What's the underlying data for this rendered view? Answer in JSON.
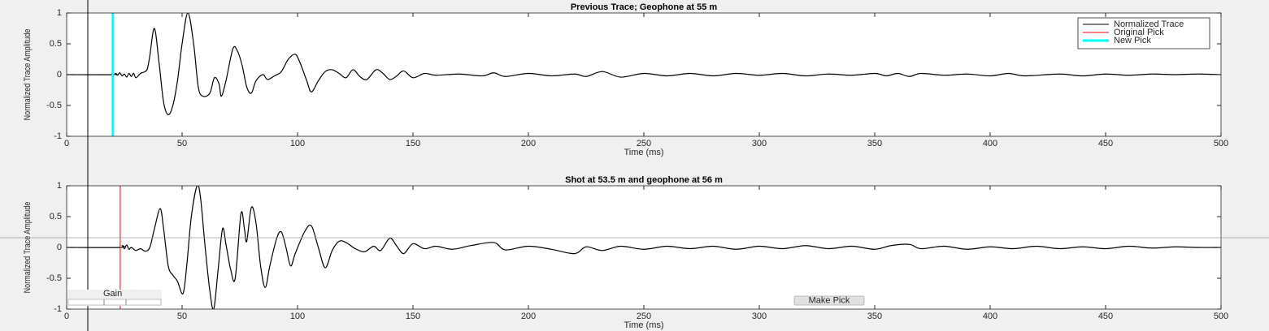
{
  "chart_data": [
    {
      "type": "line",
      "title": "Previous Trace; Geophone at 55 m",
      "xlabel": "Time (ms)",
      "ylabel": "Normalized Trace Amplitude",
      "xlim": [
        0,
        500
      ],
      "ylim": [
        -1,
        1
      ],
      "xticks": [
        0,
        50,
        100,
        150,
        200,
        250,
        300,
        350,
        400,
        450,
        500
      ],
      "yticks": [
        -1,
        -0.5,
        0,
        0.5,
        1
      ],
      "legend": "upper right",
      "series": [
        {
          "name": "Normalized Trace",
          "color": "#000000",
          "x": [
            0,
            20,
            21,
            22,
            23,
            24,
            25,
            26,
            27,
            28,
            29,
            30,
            32,
            34,
            35,
            36,
            38,
            40,
            42,
            44,
            46,
            48,
            50,
            52.5,
            55,
            57,
            59,
            62,
            64,
            66,
            67,
            69,
            72,
            74,
            76,
            78,
            80,
            82,
            85,
            87,
            90,
            93,
            96,
            99,
            101,
            104,
            106,
            109,
            112,
            115,
            118,
            121,
            124,
            127,
            130,
            134,
            137,
            140,
            143,
            146,
            150,
            155,
            160,
            170,
            180,
            185,
            190,
            200,
            210,
            220,
            225,
            232,
            240,
            250,
            260,
            270,
            280,
            290,
            300,
            310,
            320,
            330,
            340,
            350,
            355,
            360,
            365,
            370,
            380,
            390,
            400,
            408,
            415,
            430,
            440,
            450,
            460,
            470,
            480,
            490,
            500
          ],
          "values": [
            0,
            0,
            0.02,
            -0.01,
            0.03,
            -0.02,
            0.01,
            -0.04,
            0.02,
            -0.03,
            0.02,
            -0.05,
            0.02,
            0.05,
            0.1,
            0.3,
            0.75,
            0.2,
            -0.45,
            -0.65,
            -0.5,
            -0.1,
            0.5,
            1,
            0.5,
            -0.2,
            -0.35,
            -0.3,
            -0.05,
            -0.15,
            -0.35,
            -0.1,
            0.42,
            0.38,
            0.15,
            -0.2,
            -0.3,
            -0.1,
            0,
            -0.08,
            -0.02,
            0.05,
            0.25,
            0.33,
            0.2,
            -0.1,
            -0.28,
            -0.1,
            0.05,
            0.08,
            0.02,
            -0.05,
            0.08,
            -0.03,
            -0.08,
            0.08,
            0.02,
            -0.08,
            -0.02,
            0.06,
            -0.05,
            0.02,
            -0.01,
            0.01,
            -0.02,
            0.03,
            -0.03,
            0.02,
            -0.02,
            0.01,
            -0.03,
            0.05,
            -0.04,
            0.02,
            -0.02,
            0.02,
            -0.02,
            0.02,
            -0.01,
            0.02,
            -0.02,
            0.01,
            -0.01,
            0.02,
            -0.02,
            0.02,
            -0.03,
            0.02,
            -0.01,
            0.01,
            -0.02,
            0.02,
            -0.02,
            0.01,
            -0.02,
            0.01,
            -0.01,
            0.01,
            0,
            0.01,
            0
          ]
        }
      ],
      "picks": [
        {
          "name": "Original Pick",
          "color": "#ff0000",
          "x": 20
        },
        {
          "name": "New Pick",
          "color": "#00ffff",
          "x": 20
        }
      ]
    },
    {
      "type": "line",
      "title": "Shot at 53.5 m and geophone at 56 m",
      "xlabel": "Time (ms)",
      "ylabel": "Normalized Trace Amplitude",
      "xlim": [
        0,
        500
      ],
      "ylim": [
        -1,
        1
      ],
      "xticks": [
        0,
        50,
        100,
        150,
        200,
        250,
        300,
        350,
        400,
        450,
        500
      ],
      "yticks": [
        -1,
        -0.5,
        0,
        0.5,
        1
      ],
      "series": [
        {
          "color": "#000000",
          "x": [
            0,
            23,
            24,
            25,
            26,
            27,
            28,
            30,
            32,
            34,
            36,
            38,
            40.5,
            42,
            44,
            46,
            48,
            50.4,
            52,
            54,
            56.5,
            58,
            60,
            62,
            63.7,
            65.5,
            67.5,
            69,
            71,
            73,
            75.5,
            77,
            78,
            80,
            82,
            84,
            86,
            88,
            91,
            93,
            95,
            97,
            99,
            103,
            106,
            109,
            112,
            115,
            118,
            121,
            125,
            129,
            133,
            136,
            140,
            143,
            146,
            150,
            155,
            160,
            167,
            175,
            185,
            190,
            200,
            210,
            220,
            225,
            232,
            240,
            250,
            260,
            270,
            280,
            290,
            300,
            310,
            320,
            330,
            340,
            350,
            357,
            365,
            370,
            380,
            390,
            400,
            410,
            420,
            430,
            440,
            450,
            460,
            470,
            480,
            490,
            500
          ],
          "values": [
            0,
            0,
            0.03,
            -0.02,
            0.04,
            -0.03,
            0,
            -0.05,
            -0.02,
            -0.06,
            0,
            0.3,
            0.63,
            0.3,
            -0.3,
            -0.45,
            -0.55,
            -0.75,
            -0.3,
            0.5,
            1,
            0.8,
            0,
            -0.7,
            -1,
            -0.4,
            0.3,
            0.05,
            -0.35,
            -0.5,
            0.55,
            0.3,
            0.1,
            0.65,
            0.4,
            -0.3,
            -0.65,
            -0.3,
            0.15,
            0.25,
            0,
            -0.3,
            -0.1,
            0.25,
            0.35,
            0,
            -0.33,
            -0.05,
            0.1,
            0.08,
            -0.02,
            -0.07,
            0.02,
            -0.05,
            0.15,
            0.02,
            -0.1,
            0.06,
            -0.02,
            0.02,
            -0.03,
            0.03,
            0.08,
            -0.04,
            0.02,
            -0.03,
            -0.1,
            0.01,
            -0.05,
            0.02,
            -0.03,
            0.02,
            -0.02,
            0.02,
            -0.03,
            0.02,
            -0.02,
            0.03,
            -0.02,
            0.02,
            -0.03,
            0.03,
            0.05,
            -0.02,
            0.02,
            -0.03,
            0.01,
            -0.02,
            0.02,
            -0.02,
            0.01,
            -0.02,
            0.02,
            -0.01,
            0.01,
            0,
            0
          ]
        }
      ],
      "picks": [
        {
          "color": "#ff0000",
          "x": 23.2
        }
      ]
    }
  ],
  "controls": {
    "gain_label": "Gain",
    "button": "Make Pick"
  }
}
